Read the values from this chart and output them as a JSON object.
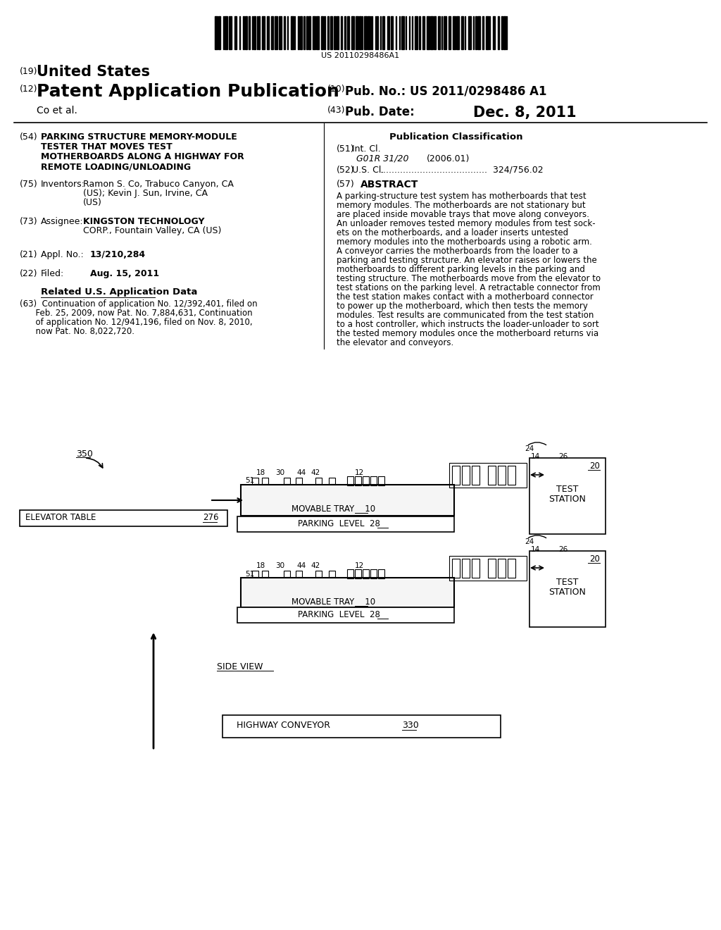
{
  "bg_color": "#ffffff",
  "barcode_text": "US 20110298486A1",
  "header": {
    "line1_label": "(19)",
    "line1_text": "United States",
    "line2_label": "(12)",
    "line2_text": "Patent Application Publication",
    "line3_right1_label": "(10)",
    "line3_right1_text": "Pub. No.:",
    "line3_right1_val": "US 2011/0298486 A1",
    "line4_left": "Co et al.",
    "line4_right_label": "(43)",
    "line4_right_text": "Pub. Date:",
    "line4_right_val": "Dec. 8, 2011"
  },
  "left_col": {
    "title_label": "(54)",
    "title_text": "PARKING STRUCTURE MEMORY-MODULE\nTESTER THAT MOVES TEST\nMOTHERBOARDS ALONG A HIGHWAY FOR\nREMOTE LOADING/UNLOADING",
    "inventors_label": "(75)",
    "inventors_key": "Inventors:",
    "inventors_val": "Ramon S. Co, Trabuco Canyon, CA\n(US); Kevin J. Sun, Irvine, CA\n(US)",
    "assignee_label": "(73)",
    "assignee_key": "Assignee:",
    "assignee_val": "KINGSTON TECHNOLOGY\nCORP., Fountain Valley, CA (US)",
    "appl_label": "(21)",
    "appl_key": "Appl. No.:",
    "appl_val": "13/210,284",
    "filed_label": "(22)",
    "filed_key": "Filed:",
    "filed_val": "Aug. 15, 2011",
    "related_title": "Related U.S. Application Data",
    "related_text": "(63)  Continuation of application No. 12/392,401, filed on\n      Feb. 25, 2009, now Pat. No. 7,884,631, Continuation\n      of application No. 12/941,196, filed on Nov. 8, 2010,\n      now Pat. No. 8,022,720."
  },
  "right_col": {
    "pub_class_title": "Publication Classification",
    "intl_label": "(51)",
    "intl_key": "Int. Cl.",
    "intl_class": "G01R 31/20",
    "intl_year": "(2006.01)",
    "us_label": "(52)",
    "us_key": "U.S. Cl.",
    "us_val": "324/756.02",
    "abstract_label": "(57)",
    "abstract_title": "ABSTRACT",
    "abstract_text": "A parking-structure test system has motherboards that test\nmemory modules. The motherboards are not stationary but\nare placed inside movable trays that move along conveyors.\nAn unloader removes tested memory modules from test sock-\nets on the motherboards, and a loader inserts untested\nmemory modules into the motherboards using a robotic arm.\nA conveyor carries the motherboards from the loader to a\nparking and testing structure. An elevator raises or lowers the\nmotherboards to different parking levels in the parking and\ntesting structure. The motherboards move from the elevator to\ntest stations on the parking level. A retractable connector from\nthe test station makes contact with a motherboard connector\nto power up the motherboard, which then tests the memory\nmodules. Test results are communicated from the test station\nto a host controller, which instructs the loader-unloader to sort\nthe tested memory modules once the motherboard returns via\nthe elevator and conveyors."
  },
  "diagram": {
    "label_350": "350",
    "label_276": "276",
    "label_elevator": "ELEVATOR TABLE",
    "label_parking": "PARKING  LEVEL  28",
    "label_movable": "MOVABLE TRAY    10",
    "label_test1": "TEST",
    "label_station": "STATION",
    "label_20": "20",
    "label_side_view": "SIDE VIEW",
    "label_highway": "HIGHWAY CONVEYOR",
    "label_330": "330",
    "comp_labels": [
      "18",
      "30",
      "44",
      "42",
      "12"
    ],
    "comp_x": [
      370,
      398,
      428,
      448,
      510
    ],
    "label_51": "51",
    "label_14": "14",
    "label_26": "26",
    "label_24": "24"
  }
}
